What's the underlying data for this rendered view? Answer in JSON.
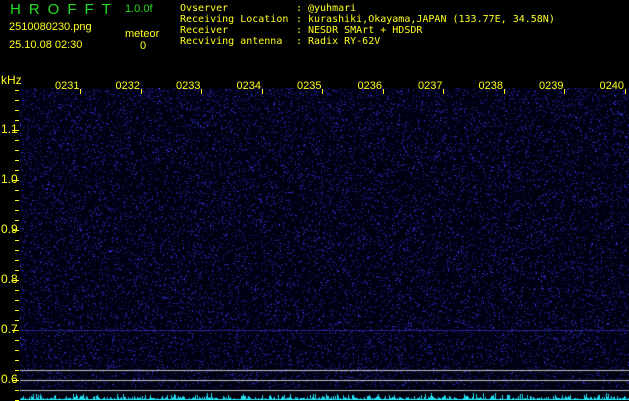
{
  "header": {
    "logo": "HROFFT",
    "version": "1.0.0f",
    "filename": "2510080230.png",
    "datetime": "25.10.08 02:30",
    "meteor_label": "meteor",
    "meteor_count": "0"
  },
  "info": [
    {
      "label": "Ovserver",
      "value": "@yuhmari"
    },
    {
      "label": "Receiving Location",
      "value": "kurashiki,Okayama,JAPAN (133.77E, 34.58N)"
    },
    {
      "label": "Receiver",
      "value": "NESDR SMArt + HDSDR"
    },
    {
      "label": "Recviving antenna",
      "value": "Radix RY-62V"
    }
  ],
  "axis": {
    "unit": "kHz",
    "y_ticks": [
      "1.1",
      "1.0",
      "0.9",
      "0.8",
      "0.7",
      "0.6"
    ],
    "x_ticks": [
      "0231",
      "0232",
      "0233",
      "0234",
      "0235",
      "0236",
      "0237",
      "0238",
      "0239",
      "0240"
    ]
  },
  "colors": {
    "text": "#ffff20",
    "logo": "#22dd22",
    "noise": "#2020c0",
    "level": "#20e0f0",
    "markers": "#c0c0c0"
  }
}
